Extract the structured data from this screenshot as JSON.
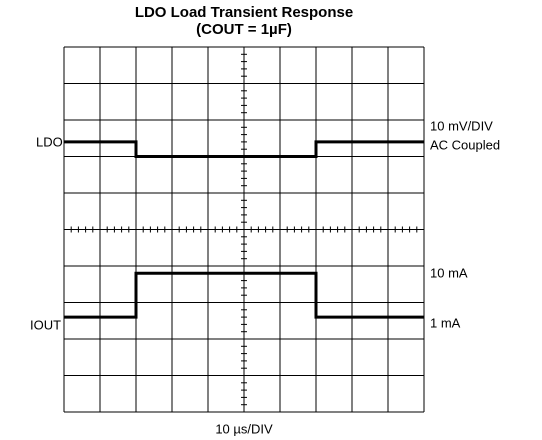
{
  "chart_data": {
    "type": "line",
    "title": "LDO Load Transient Response",
    "subtitle": "(COUT = 1µF)",
    "x_label": "10 µs/DIV",
    "annotations": [
      "10 mV/DIV",
      "AC Coupled",
      "10 mA",
      "1 mA"
    ],
    "x": [
      0,
      2,
      2,
      7,
      7,
      10
    ],
    "series": [
      {
        "name": "LDO",
        "color": "#000000",
        "values": [
          7.4,
          7.4,
          7.0,
          7.0,
          7.4,
          7.4
        ]
      },
      {
        "name": "IOUT",
        "color": "#000000",
        "values": [
          2.6,
          2.6,
          3.8,
          3.8,
          2.6,
          2.6
        ]
      }
    ],
    "xlim": [
      0,
      10
    ],
    "ylim": [
      0,
      10
    ],
    "xticks": [
      0,
      1,
      2,
      3,
      4,
      5,
      6,
      7,
      8,
      9,
      10
    ],
    "yticks": [
      0,
      1,
      2,
      3,
      4,
      5,
      6,
      7,
      8,
      9,
      10
    ],
    "grid": true
  }
}
